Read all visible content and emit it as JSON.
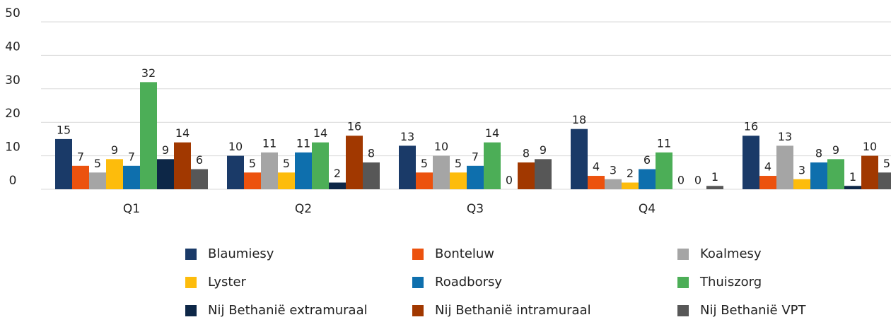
{
  "chart_data": {
    "type": "bar",
    "categories": [
      "Q1",
      "Q2",
      "Q3",
      "Q4",
      null
    ],
    "series": [
      {
        "name": "Blaumiesy",
        "color": "#1a3a68",
        "values": [
          15,
          10,
          13,
          18,
          16
        ]
      },
      {
        "name": "Bonteluw",
        "color": "#ec520e",
        "values": [
          7,
          5,
          5,
          4,
          4
        ]
      },
      {
        "name": "Koalmesy",
        "color": "#a5a5a5",
        "values": [
          5,
          11,
          10,
          3,
          13
        ]
      },
      {
        "name": "Lyster",
        "color": "#fdbc0c",
        "values": [
          9,
          5,
          5,
          2,
          3
        ]
      },
      {
        "name": "Roadborsy",
        "color": "#0e6fad",
        "values": [
          7,
          11,
          7,
          6,
          8
        ]
      },
      {
        "name": "Thuiszorg",
        "color": "#4cae57",
        "values": [
          32,
          14,
          14,
          11,
          9
        ]
      },
      {
        "name": "Nij Bethanië extramuraal",
        "color": "#0d2747",
        "values": [
          9,
          2,
          0,
          0,
          1
        ]
      },
      {
        "name": "Nij Bethanië intramuraal",
        "color": "#a13800",
        "values": [
          14,
          16,
          8,
          0,
          10
        ]
      },
      {
        "name": "Nij Bethanië VPT",
        "color": "#575757",
        "values": [
          6,
          8,
          9,
          1,
          5
        ]
      }
    ],
    "ylim": [
      0,
      50
    ],
    "yticks": [
      0,
      10,
      20,
      30,
      40,
      50
    ],
    "grid": true,
    "legend": "bottom"
  }
}
